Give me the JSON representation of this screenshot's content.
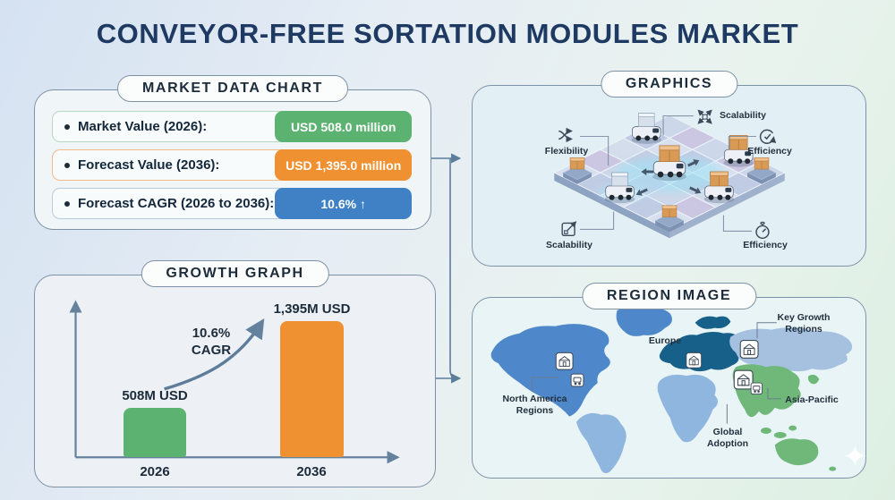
{
  "title": "CONVEYOR-FREE SORTATION MODULES MARKET",
  "market_panel": {
    "title": "MARKET DATA CHART",
    "rows": [
      {
        "label": "Market Value (2026):",
        "value": "USD 508.0 million",
        "badge_color": "#5cb271",
        "border_color": "#b7d9c1"
      },
      {
        "label": "Forecast Value (2036):",
        "value": "USD 1,395.0 million",
        "badge_color": "#ef9130",
        "border_color": "#f3bb8a"
      },
      {
        "label": "Forecast CAGR (2026 to 2036):",
        "value": "10.6% ↑",
        "badge_color": "#3f81c4",
        "border_color": "#b9cbda"
      }
    ]
  },
  "growth_panel": {
    "title": "GROWTH GRAPH",
    "cagr_line1": "10.6%",
    "cagr_line2": "CAGR"
  },
  "chart_data": {
    "type": "bar",
    "title": "GROWTH GRAPH",
    "categories": [
      "2026",
      "2036"
    ],
    "values": [
      508,
      1395
    ],
    "unit": "million USD",
    "bar_labels": [
      "508M USD",
      "1,395M USD"
    ],
    "bar_colors": [
      "#5cb271",
      "#ef9130"
    ],
    "annotation": "10.6% CAGR",
    "xlabel": "",
    "ylabel": "",
    "ylim": [
      0,
      1500
    ],
    "grid": false,
    "legend": false
  },
  "graphics_panel": {
    "title": "GRAPHICS",
    "callouts": [
      {
        "label": "Scalability",
        "icon": "expand-arrows-icon"
      },
      {
        "label": "Flexibility",
        "icon": "shuffle-arrows-icon"
      },
      {
        "label": "Efficiency",
        "icon": "circular-arrow-icon"
      },
      {
        "label": "Scalability",
        "icon": "box-expand-icon"
      },
      {
        "label": "Efficiency",
        "icon": "stopwatch-icon"
      }
    ]
  },
  "region_panel": {
    "title": "REGION IMAGE",
    "labels": {
      "europe": "Europe",
      "key_growth": "Key Growth Regions",
      "north_america": "North America Regions",
      "asia_pacific": "Asia-Pacific",
      "global": "Global Adoption"
    }
  },
  "icons": {
    "sparkle": "✦"
  },
  "colors": {
    "accent_green": "#5cb271",
    "accent_orange": "#ef9130",
    "accent_blue": "#3f81c4",
    "title_navy": "#1e3a63",
    "map_north_america": "#4e88ca",
    "map_europe": "#176089",
    "map_light_blue": "#8fb6de",
    "map_russia": "#a6c0e0",
    "map_green": "#6fb879"
  }
}
